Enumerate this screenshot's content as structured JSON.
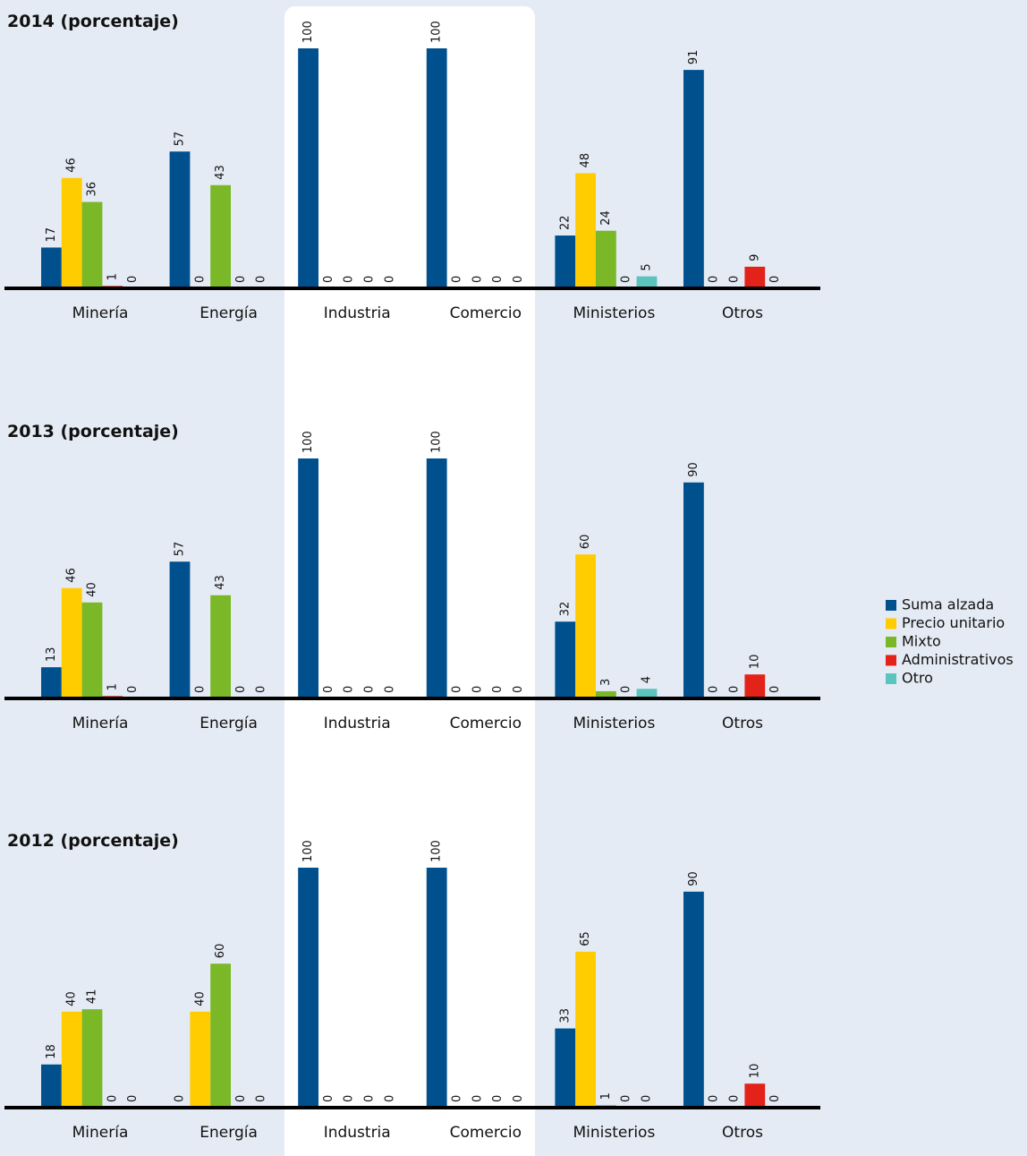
{
  "chart_data": [
    {
      "type": "bar",
      "title": "2014 (porcentaje)",
      "categories": [
        "Minería",
        "Energía",
        "Industria",
        "Comercio",
        "Ministerios",
        "Otros"
      ],
      "ylim": [
        0,
        100
      ],
      "series": [
        {
          "name": "Suma alzada",
          "color": "#00508e",
          "values": [
            17,
            57,
            100,
            100,
            22,
            91
          ]
        },
        {
          "name": "Precio unitario",
          "color": "#ffcc00",
          "values": [
            46,
            0,
            0,
            0,
            48,
            0
          ]
        },
        {
          "name": "Mixto",
          "color": "#7ab828",
          "values": [
            36,
            43,
            0,
            0,
            24,
            0
          ]
        },
        {
          "name": "Administrativos",
          "color": "#e3231a",
          "values": [
            1,
            0,
            0,
            0,
            0,
            9
          ]
        },
        {
          "name": "Otro",
          "color": "#5bc4bf",
          "values": [
            0,
            0,
            0,
            0,
            5,
            0
          ]
        }
      ]
    },
    {
      "type": "bar",
      "title": "2013 (porcentaje)",
      "categories": [
        "Minería",
        "Energía",
        "Industria",
        "Comercio",
        "Ministerios",
        "Otros"
      ],
      "ylim": [
        0,
        100
      ],
      "series": [
        {
          "color": "#00508e",
          "values": [
            13,
            57,
            100,
            100,
            32,
            90
          ]
        },
        {
          "color": "#ffcc00",
          "values": [
            46,
            0,
            0,
            0,
            60,
            0
          ]
        },
        {
          "color": "#7ab828",
          "values": [
            40,
            43,
            0,
            0,
            3,
            0
          ]
        },
        {
          "color": "#e3231a",
          "values": [
            1,
            0,
            0,
            0,
            0,
            10
          ]
        },
        {
          "color": "#5bc4bf",
          "values": [
            0,
            0,
            0,
            0,
            4,
            0
          ]
        }
      ]
    },
    {
      "type": "bar",
      "title": "2012 (porcentaje)",
      "categories": [
        "Minería",
        "Energía",
        "Industria",
        "Comercio",
        "Ministerios",
        "Otros"
      ],
      "ylim": [
        0,
        100
      ],
      "series": [
        {
          "color": "#00508e",
          "values": [
            18,
            0,
            100,
            100,
            33,
            90
          ]
        },
        {
          "color": "#ffcc00",
          "values": [
            40,
            40,
            0,
            0,
            65,
            0
          ]
        },
        {
          "color": "#7ab828",
          "values": [
            41,
            60,
            0,
            0,
            1,
            0
          ]
        },
        {
          "color": "#e3231a",
          "values": [
            0,
            0,
            0,
            0,
            0,
            10
          ]
        },
        {
          "color": "#5bc4bf",
          "values": [
            0,
            0,
            0,
            0,
            0,
            0
          ]
        }
      ]
    }
  ]
}
